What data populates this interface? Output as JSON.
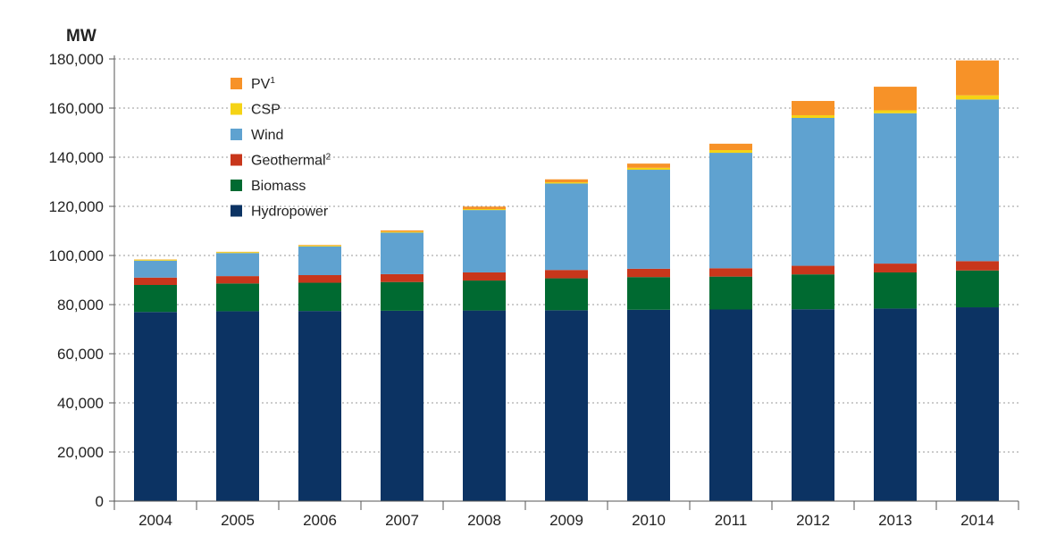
{
  "chart_data": {
    "type": "bar",
    "stacked": true,
    "unit_label": "MW",
    "title": "",
    "xlabel": "",
    "ylabel": "MW",
    "ylim": [
      0,
      180000
    ],
    "yticks": [
      0,
      20000,
      40000,
      60000,
      80000,
      100000,
      120000,
      140000,
      160000,
      180000
    ],
    "ytick_labels": [
      "0",
      "20,000",
      "40,000",
      "60,000",
      "80,000",
      "100,000",
      "120,000",
      "140,000",
      "160,000",
      "180,000"
    ],
    "grid": "horizontal dotted",
    "legend_position": "top-left",
    "categories": [
      "2004",
      "2005",
      "2006",
      "2007",
      "2008",
      "2009",
      "2010",
      "2011",
      "2012",
      "2013",
      "2014"
    ],
    "series": [
      {
        "name": "Hydropower",
        "legend_sup": "",
        "color": "#0c3363",
        "values": [
          77000,
          77300,
          77400,
          77500,
          77600,
          77700,
          77900,
          78000,
          78100,
          78400,
          78900
        ]
      },
      {
        "name": "Biomass",
        "legend_sup": "",
        "color": "#006a31",
        "values": [
          11000,
          11300,
          11500,
          11700,
          12200,
          13000,
          13300,
          13400,
          14200,
          14700,
          15000
        ]
      },
      {
        "name": "Geothermal",
        "legend_sup": "2",
        "color": "#c8361b",
        "values": [
          3000,
          3000,
          3100,
          3200,
          3300,
          3400,
          3400,
          3400,
          3500,
          3600,
          3800
        ]
      },
      {
        "name": "Wind",
        "legend_sup": "",
        "color": "#5fa2d0",
        "values": [
          6900,
          9400,
          11700,
          16900,
          25400,
          35200,
          40300,
          47000,
          60200,
          61200,
          65800
        ]
      },
      {
        "name": "CSP",
        "legend_sup": "",
        "color": "#f5d315",
        "values": [
          400,
          400,
          400,
          400,
          400,
          500,
          800,
          1100,
          1100,
          1200,
          1700
        ]
      },
      {
        "name": "PV",
        "legend_sup": "1",
        "color": "#f79228",
        "values": [
          100,
          100,
          200,
          500,
          1000,
          1200,
          1700,
          2600,
          5800,
          9600,
          14200
        ]
      }
    ]
  }
}
